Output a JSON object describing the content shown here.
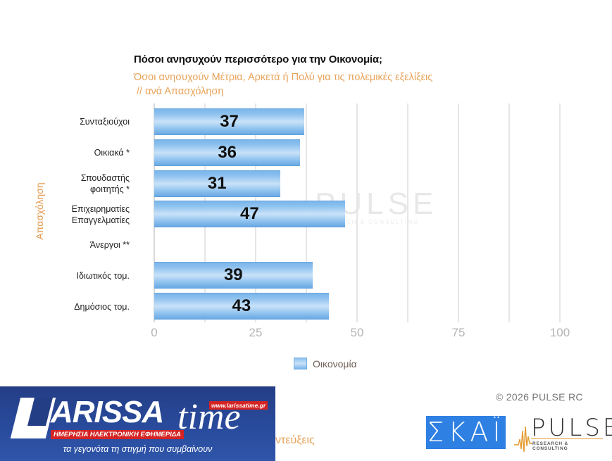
{
  "header": {
    "title": "Πόσοι ανησυχούν περισσότερο για την Οικονομία;",
    "subtitle": "Όσοι ανησυχούν Μέτρια, Αρκετά ή Πολύ για τις πολεμικές εξελίξεις\n // ανά Απασχόληση"
  },
  "chart_data": {
    "type": "bar",
    "orientation": "horizontal",
    "title": "Πόσοι ανησυχούν περισσότερο για την Οικονομία;",
    "subtitle": "Όσοι ανησυχούν Μέτρια, Αρκετά ή Πολύ για τις πολεμικές εξελίξεις // ανά Απασχόληση",
    "ylabel": "Απασχόληση",
    "xlabel": "",
    "categories": [
      "Συνταξιούχοι",
      "Οικιακά *",
      "Σπουδαστής\nφοιτητής *",
      "Επιχειρηματίες\nΕπαγγελματίες",
      "Άνεργοι **",
      "Ιδιωτικός τομ.",
      "Δημόσιος τομ."
    ],
    "series": [
      {
        "name": "Οικονομία",
        "values": [
          37,
          36,
          31,
          47,
          null,
          39,
          43
        ],
        "color": "#8fc2ef"
      }
    ],
    "xlim": [
      0,
      100
    ],
    "xticks": [
      "0",
      "25",
      "50",
      "75",
      "100"
    ],
    "grid": true,
    "legend_position": "bottom"
  },
  "axis": {
    "y_title": "Απασχόληση",
    "ticks": [
      "0",
      "25",
      "50",
      "75",
      "100"
    ]
  },
  "legend": {
    "label": "Οικονομία"
  },
  "watermark": {
    "main": "PULSE",
    "sub": "RESEARCH & CONSULTING"
  },
  "footer": {
    "copyright": "©  2026  PULSE RC",
    "cut_text": "ντεύξεις",
    "skai_logo": "ΣΚΑΪ",
    "pulse_logo": "PULSE",
    "pulse_sub": "RESEARCH & CONSULTING"
  },
  "banner": {
    "brand": "ARISSA",
    "brand_time": "time",
    "url": "www.larissatime.gr",
    "tagline": "ΗΜΕΡΗΣΙΑ ΗΛΕΚΤΡΟΝΙΚΗ ΕΦΗΜΕΡΙΔΑ",
    "slogan": "τα γεγονότα τη στιγμή που συμβαίνουν"
  }
}
